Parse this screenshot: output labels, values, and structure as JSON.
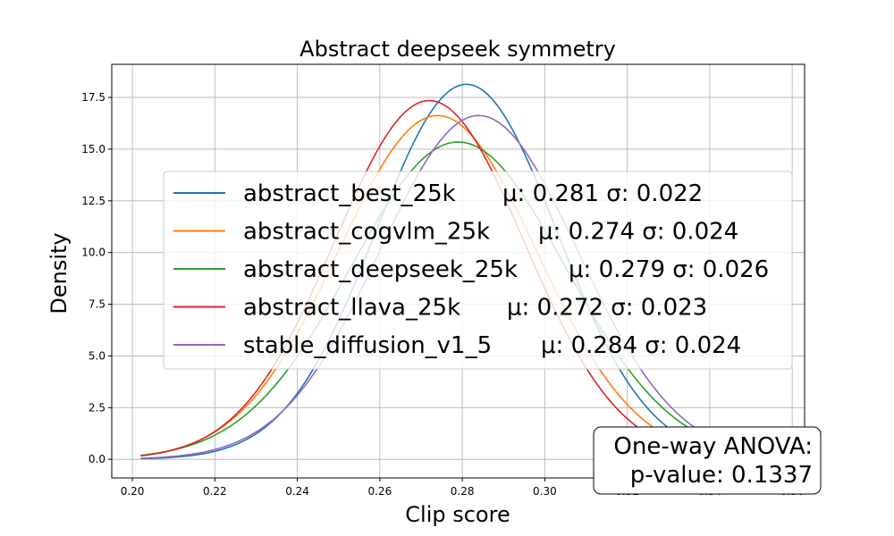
{
  "chart_data": {
    "type": "line",
    "title": "Abstract deepseek symmetry",
    "xlabel": "Clip score",
    "ylabel": "Density",
    "xlim": [
      0.195,
      0.363
    ],
    "ylim": [
      -0.9,
      19.1
    ],
    "xticks": [
      0.2,
      0.22,
      0.24,
      0.26,
      0.28,
      0.3,
      0.32,
      0.34,
      0.36
    ],
    "xtick_labels": [
      "0.20",
      "0.22",
      "0.24",
      "0.26",
      "0.28",
      "0.30",
      "0.32",
      "0.34",
      "0.36"
    ],
    "yticks": [
      0.0,
      2.5,
      5.0,
      7.5,
      10.0,
      12.5,
      15.0,
      17.5
    ],
    "ytick_labels": [
      "0.0",
      "2.5",
      "5.0",
      "7.5",
      "10.0",
      "12.5",
      "15.0",
      "17.5"
    ],
    "x_range": [
      0.202,
      0.357
    ],
    "grid": true,
    "legend_position": "center",
    "series": [
      {
        "name": "abstract_best_25k",
        "stats": "μ: 0.281 σ: 0.022",
        "mean": 0.281,
        "sd": 0.022,
        "color": "#1f77b4"
      },
      {
        "name": "abstract_cogvlm_25k",
        "stats": "μ: 0.274 σ: 0.024",
        "mean": 0.274,
        "sd": 0.024,
        "color": "#ff7f0e"
      },
      {
        "name": "abstract_deepseek_25k",
        "stats": "μ: 0.279 σ: 0.026",
        "mean": 0.279,
        "sd": 0.026,
        "color": "#2ca02c"
      },
      {
        "name": "abstract_llava_25k",
        "stats": "μ: 0.272 σ: 0.023",
        "mean": 0.272,
        "sd": 0.023,
        "color": "#d62728"
      },
      {
        "name": "stable_diffusion_v1_5",
        "stats": "μ: 0.284 σ: 0.024",
        "mean": 0.284,
        "sd": 0.024,
        "color": "#9467bd"
      }
    ],
    "annotation": {
      "line1": "One-way ANOVA:",
      "line2": "p-value: 0.1337"
    }
  }
}
